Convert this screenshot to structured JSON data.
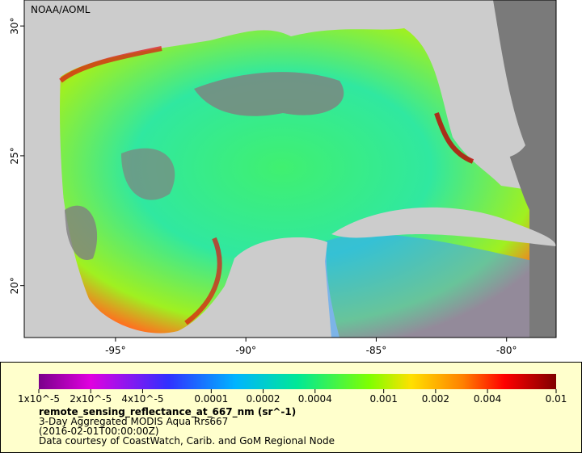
{
  "map": {
    "credit": "NOAA/AOML",
    "xlim": [
      -98.5,
      -78.1
    ],
    "ylim": [
      18,
      31
    ],
    "xticks": [
      {
        "value": -95,
        "label": "-95°"
      },
      {
        "value": -90,
        "label": "-90°"
      },
      {
        "value": -85,
        "label": "-85°"
      },
      {
        "value": -80,
        "label": "-80°"
      }
    ],
    "yticks": [
      {
        "value": 20,
        "label": "20°"
      },
      {
        "value": 25,
        "label": "25°"
      },
      {
        "value": 30,
        "label": "30°"
      }
    ]
  },
  "colorbar": {
    "log_scale": true,
    "lim": [
      1e-05,
      0.01
    ],
    "ticks": [
      {
        "value": 1e-05,
        "label": "1x10^-5"
      },
      {
        "value": 2e-05,
        "label": "2x10^-5"
      },
      {
        "value": 4e-05,
        "label": "4x10^-5"
      },
      0.0001,
      0.0002,
      0.0004,
      0.001,
      0.002,
      0.004,
      0.01
    ],
    "variable": "remote_sensing_reflectance_at_667_nm (sr^-1)",
    "lines": [
      "3-Day Aggregated MODIS Aqua Rrs667",
      "(2016-02-01T00:00:00Z)",
      "Data courtesy of CoastWatch, Carib. and GoM Regional Node"
    ]
  }
}
